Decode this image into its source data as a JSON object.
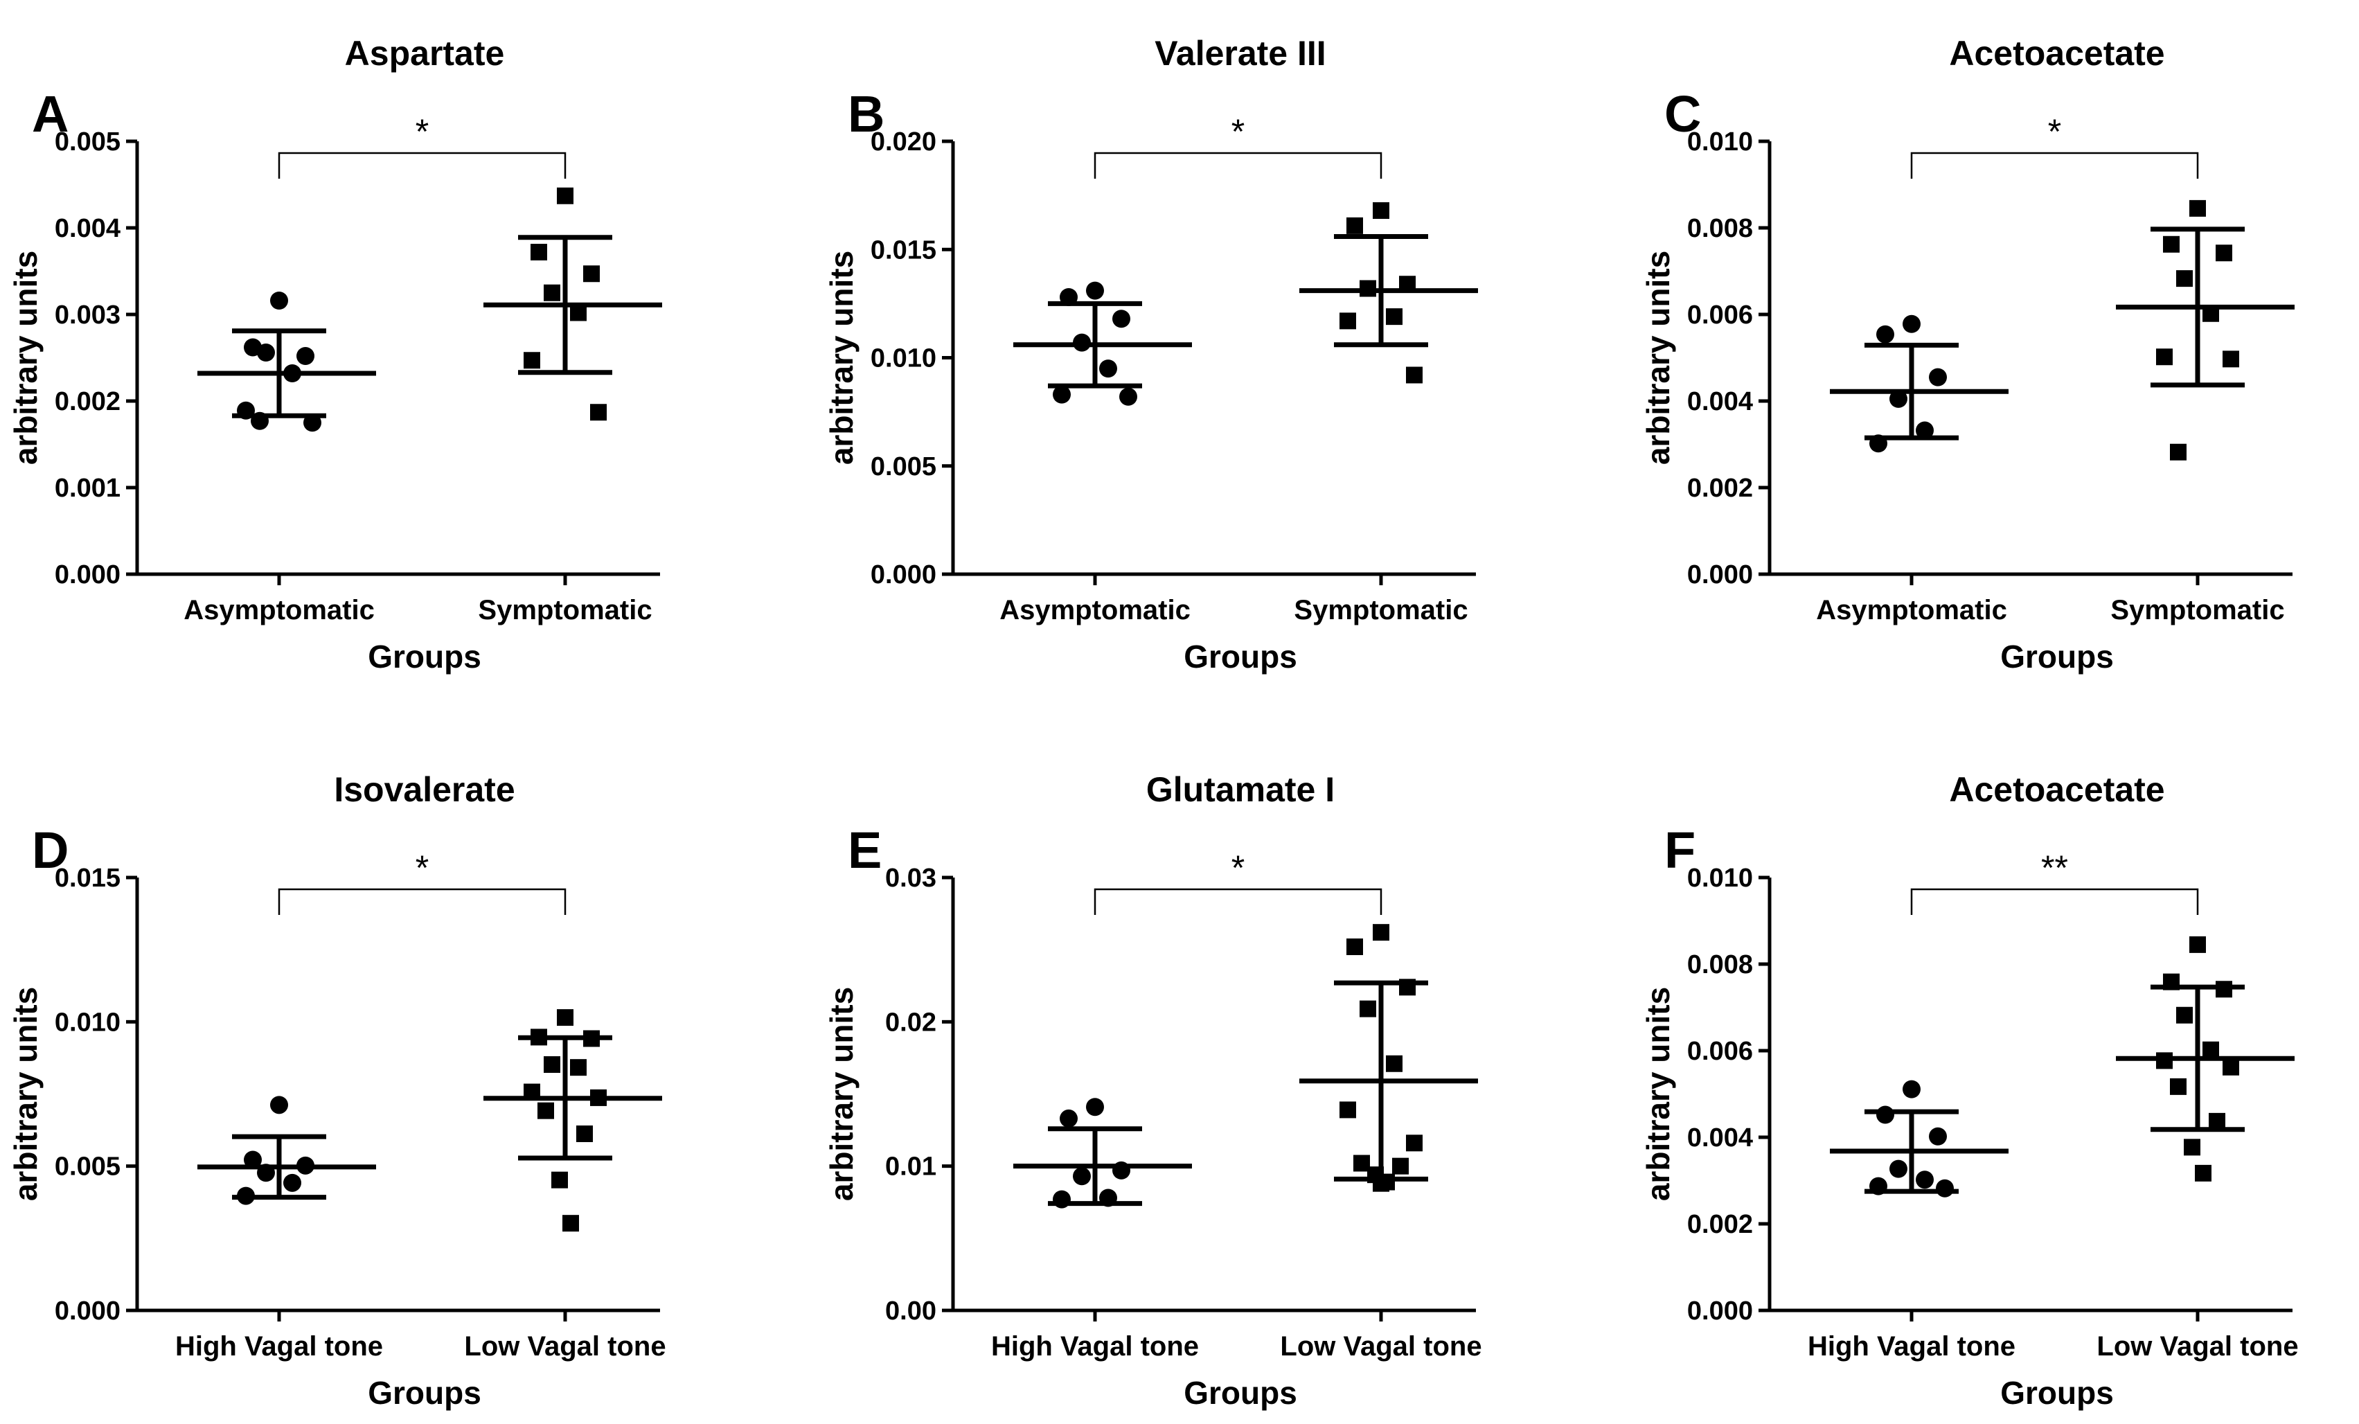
{
  "chart_data": [
    {
      "letter": "A",
      "title": "Aspartate",
      "type": "scatter",
      "ylabel": "arbitrary units",
      "xlabel": "Groups",
      "ylim": [
        0,
        0.005
      ],
      "yticks": [
        "0.000",
        "0.001",
        "0.002",
        "0.003",
        "0.004",
        "0.005"
      ],
      "categories": [
        "Asymptomatic",
        "Symptomatic"
      ],
      "series": [
        {
          "name": "Asymptomatic",
          "marker": "circle",
          "mean": 0.00232,
          "upper": 0.00281,
          "lower": 0.00183,
          "points": [
            0.00316,
            0.00262,
            0.00252,
            0.00256,
            0.00232,
            0.00189,
            0.00175,
            0.00177
          ]
        },
        {
          "name": "Symptomatic",
          "marker": "square",
          "mean": 0.00311,
          "upper": 0.00389,
          "lower": 0.00233,
          "points": [
            0.00437,
            0.00372,
            0.00347,
            0.00325,
            0.00302,
            0.00247,
            0.00187
          ]
        }
      ],
      "significance": "*"
    },
    {
      "letter": "B",
      "title": "Valerate III",
      "type": "scatter",
      "ylabel": "arbitrary units",
      "xlabel": "Groups",
      "ylim": [
        0,
        0.02
      ],
      "yticks": [
        "0.000",
        "0.005",
        "0.010",
        "0.015",
        "0.020"
      ],
      "categories": [
        "Asymptomatic",
        "Symptomatic"
      ],
      "series": [
        {
          "name": "Asymptomatic",
          "marker": "circle",
          "mean": 0.0106,
          "upper": 0.0125,
          "lower": 0.0087,
          "points": [
            0.0131,
            0.0128,
            0.0118,
            0.0107,
            0.0095,
            0.0083,
            0.0082
          ]
        },
        {
          "name": "Symptomatic",
          "marker": "square",
          "mean": 0.0131,
          "upper": 0.0156,
          "lower": 0.0106,
          "points": [
            0.0168,
            0.0161,
            0.0134,
            0.0132,
            0.0119,
            0.0117,
            0.0092
          ]
        }
      ],
      "significance": "*"
    },
    {
      "letter": "C",
      "title": "Acetoacetate",
      "type": "scatter",
      "ylabel": "arbitrary units",
      "xlabel": "Groups",
      "ylim": [
        0,
        0.01
      ],
      "yticks": [
        "0.000",
        "0.002",
        "0.004",
        "0.006",
        "0.008",
        "0.010"
      ],
      "categories": [
        "Asymptomatic",
        "Symptomatic"
      ],
      "series": [
        {
          "name": "Asymptomatic",
          "marker": "circle",
          "mean": 0.00422,
          "upper": 0.00529,
          "lower": 0.00315,
          "points": [
            0.00578,
            0.00554,
            0.00455,
            0.00405,
            0.00332,
            0.00302
          ]
        },
        {
          "name": "Symptomatic",
          "marker": "square",
          "mean": 0.00617,
          "upper": 0.00797,
          "lower": 0.00437,
          "points": [
            0.00845,
            0.00762,
            0.00742,
            0.00683,
            0.00602,
            0.00502,
            0.00497,
            0.00282
          ]
        }
      ],
      "significance": "*"
    },
    {
      "letter": "D",
      "title": "Isovalerate",
      "type": "scatter",
      "ylabel": "arbitrary units",
      "xlabel": "Groups",
      "ylim": [
        0,
        0.015
      ],
      "yticks": [
        "0.000",
        "0.005",
        "0.010",
        "0.015"
      ],
      "categories": [
        "High Vagal tone",
        "Low Vagal tone"
      ],
      "series": [
        {
          "name": "High Vagal tone",
          "marker": "circle",
          "mean": 0.00497,
          "upper": 0.00602,
          "lower": 0.00392,
          "points": [
            0.00712,
            0.00522,
            0.00502,
            0.00477,
            0.00442,
            0.00397
          ]
        },
        {
          "name": "Low Vagal tone",
          "marker": "square",
          "mean": 0.00735,
          "upper": 0.00945,
          "lower": 0.00528,
          "points": [
            0.01015,
            0.00947,
            0.00942,
            0.00852,
            0.00842,
            0.00757,
            0.00737,
            0.00692,
            0.00612,
            0.00452,
            0.00302
          ]
        }
      ],
      "significance": "*"
    },
    {
      "letter": "E",
      "title": "Glutamate I",
      "type": "scatter",
      "ylabel": "arbitrary units",
      "xlabel": "Groups",
      "ylim": [
        0,
        0.03
      ],
      "yticks": [
        "0.00",
        "0.01",
        "0.02",
        "0.03"
      ],
      "categories": [
        "High Vagal tone",
        "Low Vagal tone"
      ],
      "series": [
        {
          "name": "High Vagal tone",
          "marker": "circle",
          "mean": 0.01,
          "upper": 0.01259,
          "lower": 0.00741,
          "points": [
            0.0141,
            0.0133,
            0.0097,
            0.0093,
            0.0078,
            0.0077
          ]
        },
        {
          "name": "Low Vagal tone",
          "marker": "square",
          "mean": 0.0159,
          "upper": 0.0227,
          "lower": 0.0091,
          "points": [
            0.0262,
            0.0252,
            0.0224,
            0.0209,
            0.0171,
            0.0139,
            0.0116,
            0.0102,
            0.01,
            0.0094,
            0.0089,
            0.0088
          ]
        }
      ],
      "significance": "*"
    },
    {
      "letter": "F",
      "title": "Acetoacetate",
      "type": "scatter",
      "ylabel": "arbitrary units",
      "xlabel": "Groups",
      "ylim": [
        0,
        0.01
      ],
      "yticks": [
        "0.000",
        "0.002",
        "0.004",
        "0.006",
        "0.008",
        "0.010"
      ],
      "categories": [
        "High Vagal tone",
        "Low Vagal tone"
      ],
      "series": [
        {
          "name": "High Vagal tone",
          "marker": "circle",
          "mean": 0.00368,
          "upper": 0.00459,
          "lower": 0.00275,
          "points": [
            0.00511,
            0.00452,
            0.00402,
            0.00327,
            0.00302,
            0.00287,
            0.00282
          ]
        },
        {
          "name": "Low Vagal tone",
          "marker": "square",
          "mean": 0.00582,
          "upper": 0.00747,
          "lower": 0.00418,
          "points": [
            0.00845,
            0.00759,
            0.00742,
            0.00682,
            0.00602,
            0.00577,
            0.00562,
            0.00517,
            0.00437,
            0.00377,
            0.00317
          ]
        }
      ],
      "significance": "**"
    }
  ]
}
